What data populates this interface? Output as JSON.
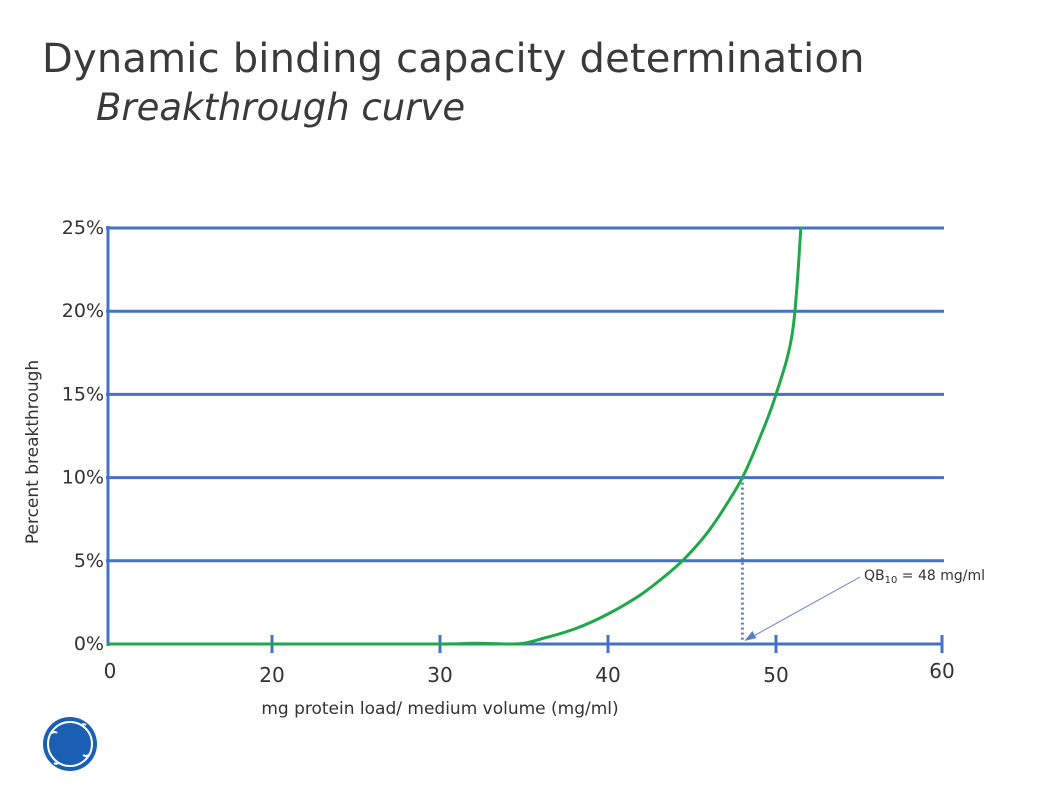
{
  "slide": {
    "title": "Dynamic binding capacity determination",
    "subtitle": "Breakthrough curve",
    "logo_text": "GE"
  },
  "colors": {
    "axis_blue": "#4472c4",
    "curve_green": "#1fa84a",
    "annotation_blue": "#5a7fc8",
    "logo_blue": "#1a5fb4"
  },
  "chart_data": {
    "type": "line",
    "xlabel": "mg protein load/ medium volume (mg/ml)",
    "ylabel": "Percent breakthrough",
    "xlim": [
      0,
      60
    ],
    "ylim": [
      0,
      25
    ],
    "x_ticks": [
      "0",
      "20",
      "30",
      "40",
      "50",
      "60"
    ],
    "x_tick_values": [
      0,
      20,
      30,
      40,
      50,
      60
    ],
    "y_ticks": [
      "0%",
      "5%",
      "10%",
      "15%",
      "20%",
      "25%"
    ],
    "y_tick_values": [
      0,
      5,
      10,
      15,
      20,
      25
    ],
    "grid": "horizontal",
    "series": [
      {
        "x": [
          0,
          10,
          20,
          30,
          32,
          34,
          35,
          36,
          38,
          40,
          42,
          44,
          45,
          46,
          47,
          48,
          49,
          50,
          51,
          51.5
        ],
        "y": [
          0,
          0,
          0,
          0,
          0.05,
          0,
          0.05,
          0.3,
          0.9,
          1.8,
          3.0,
          4.6,
          5.6,
          6.8,
          8.3,
          10,
          12.3,
          15,
          18.8,
          25
        ]
      }
    ],
    "annotation": {
      "text": "QB10 = 48 mg/ml",
      "label_main": "QB",
      "label_sub": "10",
      "label_rest": " = 48 mg/ml",
      "x": 48,
      "y": 10
    }
  }
}
